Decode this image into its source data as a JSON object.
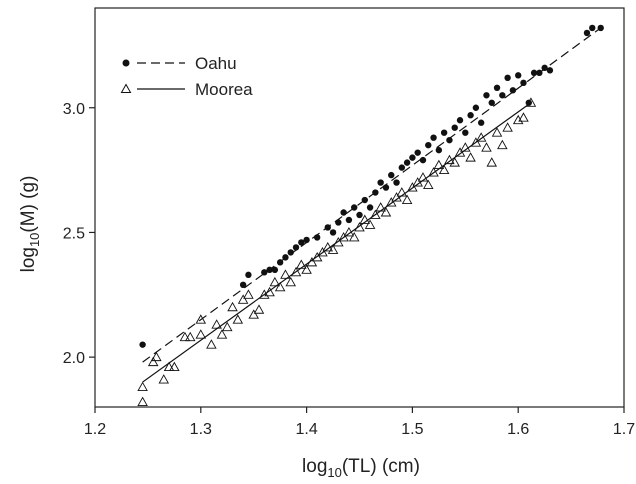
{
  "chart_data": {
    "type": "scatter",
    "xlabel": {
      "main": "log",
      "sub": "10",
      "rest": "(TL) (cm)"
    },
    "ylabel": {
      "main": "log",
      "sub": "10",
      "rest": "(M) (g)"
    },
    "xlim": [
      1.2,
      1.7
    ],
    "ylim": [
      1.8,
      3.4
    ],
    "xticks": [
      1.2,
      1.3,
      1.4,
      1.5,
      1.6,
      1.7
    ],
    "yticks": [
      2.0,
      2.5,
      3.0
    ],
    "xtick_labels": [
      "1.2",
      "1.3",
      "1.4",
      "1.5",
      "1.6",
      "1.7"
    ],
    "ytick_labels": [
      "2.0",
      "2.5",
      "3.0"
    ],
    "legend_position": "top-left",
    "series": [
      {
        "name": "Oahu",
        "marker": "filled-circle",
        "line_style": "dashed",
        "color": "#111111",
        "fit_line": [
          [
            1.245,
            1.98
          ],
          [
            1.678,
            3.32
          ]
        ],
        "points": [
          [
            1.245,
            2.05
          ],
          [
            1.34,
            2.29
          ],
          [
            1.345,
            2.33
          ],
          [
            1.36,
            2.34
          ],
          [
            1.365,
            2.35
          ],
          [
            1.37,
            2.35
          ],
          [
            1.375,
            2.38
          ],
          [
            1.38,
            2.4
          ],
          [
            1.385,
            2.42
          ],
          [
            1.39,
            2.44
          ],
          [
            1.395,
            2.46
          ],
          [
            1.4,
            2.47
          ],
          [
            1.41,
            2.48
          ],
          [
            1.42,
            2.52
          ],
          [
            1.425,
            2.5
          ],
          [
            1.43,
            2.54
          ],
          [
            1.435,
            2.58
          ],
          [
            1.44,
            2.55
          ],
          [
            1.445,
            2.6
          ],
          [
            1.45,
            2.57
          ],
          [
            1.455,
            2.63
          ],
          [
            1.46,
            2.6
          ],
          [
            1.465,
            2.66
          ],
          [
            1.47,
            2.7
          ],
          [
            1.475,
            2.68
          ],
          [
            1.48,
            2.73
          ],
          [
            1.485,
            2.7
          ],
          [
            1.49,
            2.76
          ],
          [
            1.495,
            2.78
          ],
          [
            1.5,
            2.8
          ],
          [
            1.505,
            2.82
          ],
          [
            1.51,
            2.79
          ],
          [
            1.515,
            2.85
          ],
          [
            1.52,
            2.88
          ],
          [
            1.525,
            2.83
          ],
          [
            1.53,
            2.9
          ],
          [
            1.535,
            2.87
          ],
          [
            1.54,
            2.92
          ],
          [
            1.545,
            2.95
          ],
          [
            1.55,
            2.9
          ],
          [
            1.555,
            2.97
          ],
          [
            1.56,
            3.0
          ],
          [
            1.565,
            2.94
          ],
          [
            1.57,
            3.05
          ],
          [
            1.575,
            3.02
          ],
          [
            1.58,
            3.08
          ],
          [
            1.585,
            3.05
          ],
          [
            1.59,
            3.12
          ],
          [
            1.595,
            3.07
          ],
          [
            1.6,
            3.13
          ],
          [
            1.605,
            3.1
          ],
          [
            1.61,
            3.02
          ],
          [
            1.615,
            3.14
          ],
          [
            1.62,
            3.14
          ],
          [
            1.625,
            3.16
          ],
          [
            1.63,
            3.15
          ],
          [
            1.665,
            3.3
          ],
          [
            1.67,
            3.32
          ],
          [
            1.678,
            3.32
          ]
        ]
      },
      {
        "name": "Moorea",
        "marker": "open-triangle",
        "line_style": "solid",
        "color": "#111111",
        "fit_line": [
          [
            1.245,
            1.9
          ],
          [
            1.612,
            3.02
          ]
        ],
        "points": [
          [
            1.245,
            1.82
          ],
          [
            1.245,
            1.88
          ],
          [
            1.255,
            1.98
          ],
          [
            1.258,
            2.0
          ],
          [
            1.265,
            1.91
          ],
          [
            1.27,
            1.96
          ],
          [
            1.275,
            1.96
          ],
          [
            1.285,
            2.08
          ],
          [
            1.29,
            2.08
          ],
          [
            1.3,
            2.09
          ],
          [
            1.3,
            2.15
          ],
          [
            1.31,
            2.05
          ],
          [
            1.315,
            2.13
          ],
          [
            1.32,
            2.09
          ],
          [
            1.325,
            2.12
          ],
          [
            1.33,
            2.2
          ],
          [
            1.335,
            2.15
          ],
          [
            1.34,
            2.23
          ],
          [
            1.345,
            2.25
          ],
          [
            1.35,
            2.17
          ],
          [
            1.355,
            2.19
          ],
          [
            1.36,
            2.25
          ],
          [
            1.365,
            2.26
          ],
          [
            1.37,
            2.3
          ],
          [
            1.375,
            2.28
          ],
          [
            1.38,
            2.33
          ],
          [
            1.385,
            2.3
          ],
          [
            1.39,
            2.34
          ],
          [
            1.395,
            2.37
          ],
          [
            1.4,
            2.35
          ],
          [
            1.405,
            2.38
          ],
          [
            1.41,
            2.4
          ],
          [
            1.415,
            2.42
          ],
          [
            1.42,
            2.44
          ],
          [
            1.425,
            2.43
          ],
          [
            1.43,
            2.46
          ],
          [
            1.435,
            2.48
          ],
          [
            1.44,
            2.5
          ],
          [
            1.445,
            2.48
          ],
          [
            1.45,
            2.52
          ],
          [
            1.455,
            2.55
          ],
          [
            1.46,
            2.53
          ],
          [
            1.465,
            2.57
          ],
          [
            1.47,
            2.6
          ],
          [
            1.475,
            2.58
          ],
          [
            1.48,
            2.62
          ],
          [
            1.485,
            2.64
          ],
          [
            1.49,
            2.66
          ],
          [
            1.495,
            2.63
          ],
          [
            1.5,
            2.68
          ],
          [
            1.505,
            2.7
          ],
          [
            1.51,
            2.72
          ],
          [
            1.515,
            2.69
          ],
          [
            1.52,
            2.74
          ],
          [
            1.525,
            2.77
          ],
          [
            1.53,
            2.75
          ],
          [
            1.535,
            2.79
          ],
          [
            1.54,
            2.78
          ],
          [
            1.545,
            2.82
          ],
          [
            1.55,
            2.84
          ],
          [
            1.555,
            2.8
          ],
          [
            1.56,
            2.86
          ],
          [
            1.565,
            2.88
          ],
          [
            1.57,
            2.84
          ],
          [
            1.575,
            2.78
          ],
          [
            1.58,
            2.9
          ],
          [
            1.585,
            2.85
          ],
          [
            1.59,
            2.92
          ],
          [
            1.6,
            2.95
          ],
          [
            1.605,
            2.96
          ],
          [
            1.612,
            3.02
          ]
        ]
      }
    ]
  }
}
